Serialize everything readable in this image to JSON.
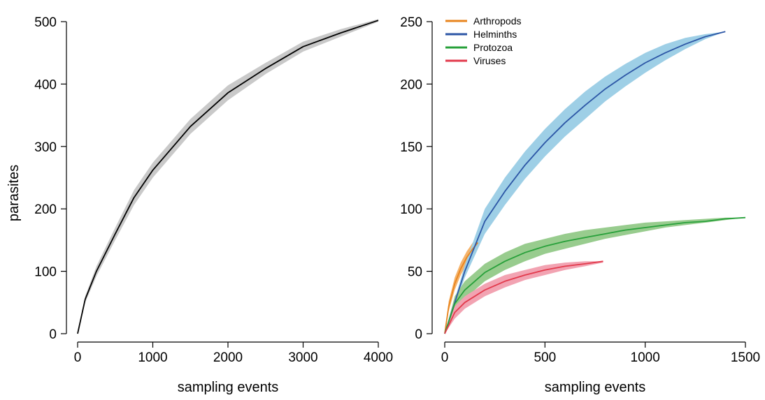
{
  "chart_data": [
    {
      "type": "line",
      "xlabel": "sampling events",
      "ylabel": "parasites",
      "xlim": [
        0,
        4000
      ],
      "ylim": [
        0,
        500
      ],
      "xticks": [
        "0",
        "1000",
        "2000",
        "3000",
        "4000"
      ],
      "yticks": [
        "0",
        "100",
        "200",
        "300",
        "400",
        "500"
      ],
      "grid": false,
      "series": [
        {
          "color": "#000000",
          "band_color": "#c9c9c9",
          "x": [
            0,
            100,
            250,
            500,
            750,
            1000,
            1500,
            2000,
            2500,
            3000,
            3500,
            4000
          ],
          "y": [
            0,
            55,
            100,
            160,
            218,
            262,
            332,
            386,
            425,
            460,
            482,
            502
          ],
          "lower": [
            0,
            50,
            92,
            150,
            206,
            250,
            320,
            374,
            416,
            452,
            476,
            500
          ],
          "upper": [
            0,
            60,
            108,
            170,
            230,
            274,
            344,
            398,
            434,
            468,
            488,
            504
          ]
        }
      ]
    },
    {
      "type": "line",
      "xlabel": "sampling events",
      "ylabel": "",
      "xlim": [
        0,
        1500
      ],
      "ylim": [
        0,
        250
      ],
      "xticks": [
        "0",
        "500",
        "1000",
        "1500"
      ],
      "yticks": [
        "0",
        "50",
        "100",
        "150",
        "200",
        "250"
      ],
      "grid": false,
      "legend_position": "top-left",
      "series": [
        {
          "name": "Arthropods",
          "color": "#e8841e",
          "band_color": "#f5b36a",
          "x": [
            0,
            20,
            50,
            80,
            110,
            140,
            165
          ],
          "y": [
            0,
            22,
            40,
            52,
            61,
            68,
            73
          ],
          "lower": [
            0,
            18,
            35,
            47,
            56,
            63,
            71
          ],
          "upper": [
            0,
            26,
            45,
            57,
            66,
            73,
            75
          ]
        },
        {
          "name": "Helminths",
          "color": "#2c56a6",
          "band_color": "#9ecfe6",
          "x": [
            0,
            100,
            200,
            300,
            400,
            500,
            600,
            700,
            800,
            900,
            1000,
            1100,
            1200,
            1300,
            1400
          ],
          "y": [
            0,
            50,
            90,
            114,
            135,
            153,
            169,
            183,
            196,
            207,
            217,
            225,
            232,
            238,
            242
          ],
          "lower": [
            0,
            45,
            80,
            103,
            124,
            142,
            158,
            172,
            186,
            198,
            209,
            219,
            228,
            236,
            242
          ],
          "upper": [
            0,
            55,
            100,
            125,
            146,
            164,
            180,
            194,
            206,
            216,
            225,
            232,
            237,
            240,
            242
          ]
        },
        {
          "name": "Protozoa",
          "color": "#27a03a",
          "band_color": "#98cc8e",
          "x": [
            0,
            50,
            100,
            200,
            300,
            400,
            500,
            600,
            700,
            800,
            900,
            1000,
            1100,
            1200,
            1300,
            1400,
            1500
          ],
          "y": [
            0,
            24,
            35,
            49,
            58,
            65,
            70,
            74,
            77,
            80,
            83,
            85,
            87,
            89,
            90,
            92,
            93
          ],
          "lower": [
            0,
            18,
            28,
            42,
            51,
            58,
            64,
            68,
            72,
            76,
            79,
            82,
            85,
            87,
            89,
            91,
            93
          ],
          "upper": [
            0,
            30,
            42,
            56,
            65,
            72,
            76,
            80,
            83,
            85,
            87,
            89,
            90,
            91,
            92,
            93,
            93
          ]
        },
        {
          "name": "Viruses",
          "color": "#e23a4c",
          "band_color": "#f2a3b2",
          "x": [
            0,
            50,
            100,
            200,
            300,
            400,
            500,
            600,
            700,
            790
          ],
          "y": [
            0,
            17,
            25,
            35,
            42,
            47,
            51,
            54,
            56,
            58
          ],
          "lower": [
            0,
            12,
            20,
            30,
            37,
            43,
            47,
            51,
            54,
            57
          ],
          "upper": [
            0,
            22,
            30,
            40,
            47,
            51,
            55,
            57,
            58,
            58
          ]
        }
      ]
    }
  ]
}
